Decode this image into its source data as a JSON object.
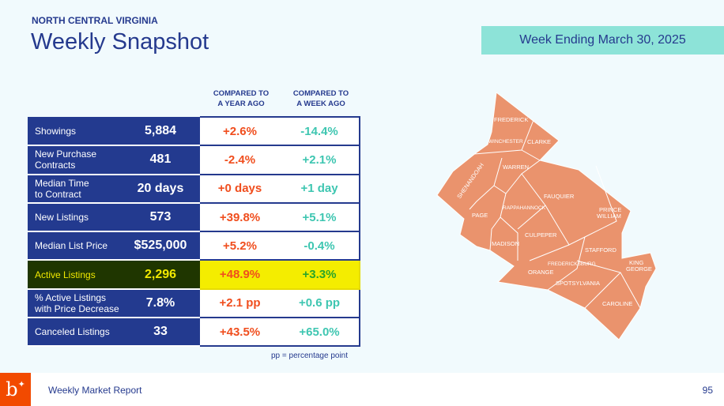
{
  "header": {
    "region": "NORTH CENTRAL VIRGINIA",
    "title": "Weekly Snapshot",
    "week": "Week Ending March 30, 2025"
  },
  "columns": {
    "year": [
      "COMPARED TO",
      "A YEAR AGO"
    ],
    "week": [
      "COMPARED TO",
      "A WEEK AGO"
    ]
  },
  "rows": [
    {
      "label": [
        "Showings"
      ],
      "value": "5,884",
      "year": "+2.6%",
      "week": "-14.4%"
    },
    {
      "label": [
        "New Purchase",
        "Contracts"
      ],
      "value": "481",
      "year": "-2.4%",
      "week": "+2.1%"
    },
    {
      "label": [
        "Median Time",
        "to Contract"
      ],
      "value": "20 days",
      "year": "+0 days",
      "week": "+1 day"
    },
    {
      "label": [
        "New Listings"
      ],
      "value": "573",
      "year": "+39.8%",
      "week": "+5.1%"
    },
    {
      "label": [
        "Median List Price"
      ],
      "value": "$525,000",
      "year": "+5.2%",
      "week": "-0.4%"
    },
    {
      "label": [
        "Active Listings"
      ],
      "value": "2,296",
      "year": "+48.9%",
      "week": "+3.3%",
      "highlight": true
    },
    {
      "label": [
        "% Active Listings",
        "with Price Decrease"
      ],
      "value": "7.8%",
      "year": "+2.1 pp",
      "week": "+0.6 pp"
    },
    {
      "label": [
        "Canceled Listings"
      ],
      "value": "33",
      "year": "+43.5%",
      "week": "+65.0%"
    }
  ],
  "note": "pp = percentage point",
  "map": {
    "fill": "#ea936d",
    "counties": [
      "FREDERICK",
      "WINCHESTER",
      "CLARKE",
      "WARREN",
      "SHENANDOAH",
      "PAGE",
      "RAPPAHANNOCK",
      "FAUQUIER",
      "PRINCE",
      "WILLIAM",
      "CULPEPER",
      "MADISON",
      "STAFFORD",
      "FREDERICKSBURG",
      "KING",
      "GEORGE",
      "ORANGE",
      "SPOTSYLVANIA",
      "CAROLINE"
    ]
  },
  "footer": {
    "logo": "b",
    "report": "Weekly Market Report",
    "page": "95"
  }
}
